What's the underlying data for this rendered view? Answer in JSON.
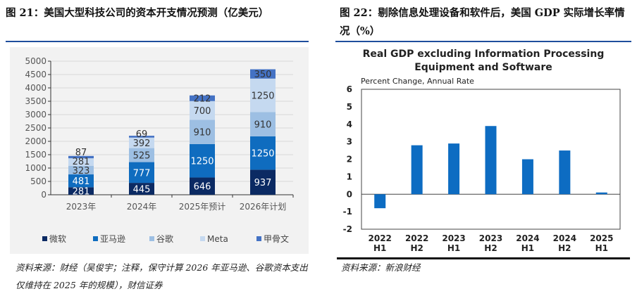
{
  "left": {
    "title": "图 21：美国大型科技公司的资本开支情况预测（亿美元）",
    "source": "资料来源：财经（吴俊宇；注释，保守计算 2026 年亚马逊、谷歌资本支出仅维持在 2025 年的规模），财信证券"
  },
  "right": {
    "title": "图 22：剔除信息处理设备和软件后，美国 GDP 实际增长率情况（%）",
    "source": "资料来源：新浪财经"
  },
  "chart_data": [
    {
      "type": "bar",
      "stacked": true,
      "categories": [
        "2023年",
        "2024年",
        "2025年预计",
        "2026年计划"
      ],
      "series": [
        {
          "name": "微软",
          "values": [
            281,
            445,
            646,
            937
          ],
          "color": "#0b2a63"
        },
        {
          "name": "亚马逊",
          "values": [
            481,
            777,
            1250,
            1250
          ],
          "color": "#0f6cbf"
        },
        {
          "name": "谷歌",
          "values": [
            323,
            525,
            910,
            910
          ],
          "color": "#9dbfe3"
        },
        {
          "name": "Meta",
          "values": [
            281,
            392,
            700,
            1250
          ],
          "color": "#c5d9f0"
        },
        {
          "name": "甲骨文",
          "values": [
            87,
            69,
            212,
            350
          ],
          "color": "#4472c4"
        }
      ],
      "ylim": [
        0,
        5000
      ],
      "yticks": [
        0,
        500,
        1000,
        1500,
        2000,
        2500,
        3000,
        3500,
        4000,
        4500,
        5000
      ],
      "grid": true,
      "legend": "bottom"
    },
    {
      "type": "bar",
      "title": "Real GDP excluding Information Processing Equipment and Software",
      "subtitle": "Percent Change, Annual Rate",
      "categories": [
        [
          "2022",
          "H1"
        ],
        [
          "2022",
          "H2"
        ],
        [
          "2023",
          "H1"
        ],
        [
          "2023",
          "H2"
        ],
        [
          "2024",
          "H1"
        ],
        [
          "2024",
          "H2"
        ],
        [
          "2025",
          "H1"
        ]
      ],
      "values": [
        -0.8,
        2.8,
        2.9,
        3.9,
        2.0,
        2.5,
        0.1
      ],
      "color": "#0d6cc2",
      "ylim": [
        -2,
        6
      ],
      "yticks": [
        -2,
        -1,
        0,
        1,
        2,
        3,
        4,
        5,
        6
      ],
      "grid": false
    }
  ]
}
